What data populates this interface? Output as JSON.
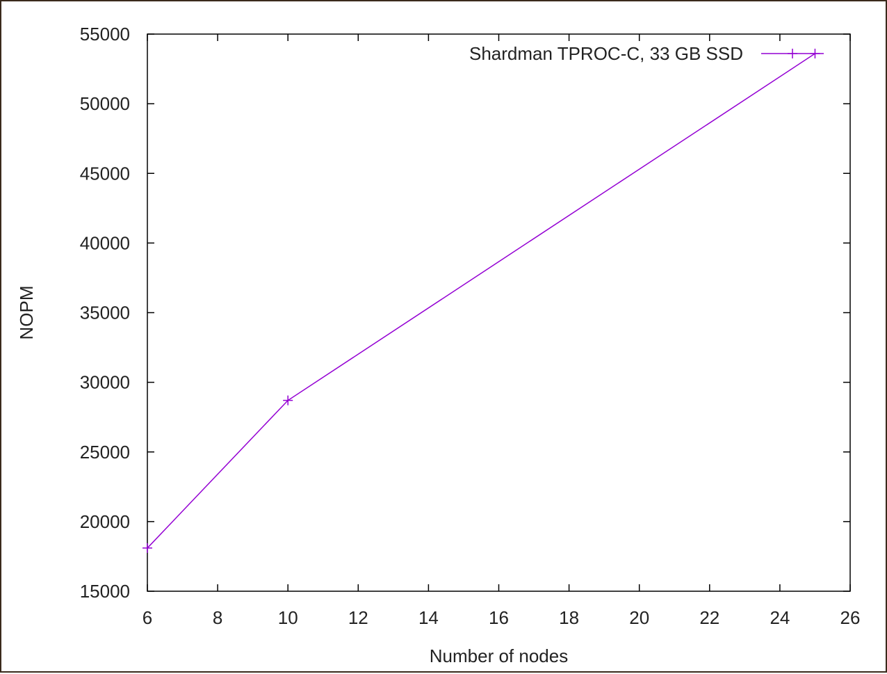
{
  "chart_data": {
    "type": "line",
    "title": "",
    "xlabel": "Number of nodes",
    "ylabel": "NOPM",
    "xlim": [
      6,
      26
    ],
    "ylim": [
      15000,
      55000
    ],
    "x_ticks": [
      6,
      8,
      10,
      12,
      14,
      16,
      18,
      20,
      22,
      24,
      26
    ],
    "y_ticks": [
      15000,
      20000,
      25000,
      30000,
      35000,
      40000,
      45000,
      50000,
      55000
    ],
    "grid": false,
    "legend_position": "top-right",
    "series": [
      {
        "name": "Shardman TPROC-C, 33 GB SSD",
        "color": "#9400d3",
        "marker": "plus",
        "x": [
          6,
          10,
          25
        ],
        "y": [
          18100,
          28700,
          53600
        ]
      }
    ]
  }
}
